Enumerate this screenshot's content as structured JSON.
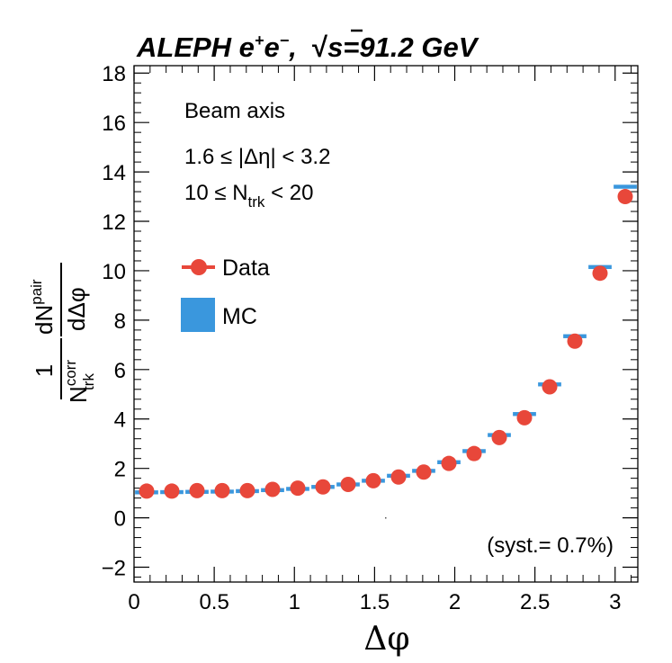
{
  "chart_data": {
    "type": "scatter",
    "title": {
      "prefix": "ALEPH e",
      "sup_plus": "+",
      "e2": "e",
      "sup_minus": "−",
      "sep": ",  ",
      "sqrt": "√",
      "energy": "s=91.2 GeV"
    },
    "xlabel": "Δφ",
    "ylabel": {
      "one": "1",
      "N": "N",
      "corr": "corr",
      "trk": "trk",
      "dN": "dN",
      "pair": "pair",
      "dphi": "dΔφ"
    },
    "xlim": [
      0,
      3.1416
    ],
    "ylim": [
      -2.6,
      18.3
    ],
    "xticks": [
      0,
      0.5,
      1,
      1.5,
      2,
      2.5,
      3
    ],
    "xtick_labels": [
      "0",
      "0.5",
      "1",
      "1.5",
      "2",
      "2.5",
      "3"
    ],
    "yticks": [
      -2,
      0,
      2,
      4,
      6,
      8,
      10,
      12,
      14,
      16,
      18
    ],
    "ytick_labels": [
      "−2",
      "0",
      "2",
      "4",
      "6",
      "8",
      "10",
      "12",
      "14",
      "16",
      "18"
    ],
    "annotations": {
      "line1": "Beam axis",
      "line2": "1.6 ≤ |Δη| < 3.2",
      "line3_prefix": "10 ≤ N",
      "line3_sub": "trk",
      "line3_suffix": " < 20",
      "syst": "(syst.= 0.7%)"
    },
    "legend": [
      {
        "name": "Data",
        "color": "#e8473a"
      },
      {
        "name": "MC",
        "color": "#3a97dd"
      }
    ],
    "series": [
      {
        "name": "Data",
        "color": "#e8473a",
        "x": [
          0.0785,
          0.2356,
          0.3927,
          0.5498,
          0.7069,
          0.8639,
          1.021,
          1.1781,
          1.3352,
          1.4923,
          1.6493,
          1.8064,
          1.9635,
          2.1206,
          2.2777,
          2.4347,
          2.5918,
          2.7489,
          2.906,
          3.0631
        ],
        "y": [
          1.08,
          1.08,
          1.1,
          1.1,
          1.1,
          1.15,
          1.2,
          1.25,
          1.35,
          1.5,
          1.65,
          1.85,
          2.2,
          2.6,
          3.25,
          4.05,
          5.3,
          7.15,
          9.9,
          13.0
        ]
      },
      {
        "name": "MC",
        "color": "#3a97dd",
        "x": [
          0.0785,
          0.2356,
          0.3927,
          0.5498,
          0.7069,
          0.8639,
          1.021,
          1.1781,
          1.3352,
          1.4923,
          1.6493,
          1.8064,
          1.9635,
          2.1206,
          2.2777,
          2.4347,
          2.5918,
          2.7489,
          2.906,
          3.0631
        ],
        "y": [
          1.03,
          1.04,
          1.05,
          1.06,
          1.08,
          1.12,
          1.17,
          1.25,
          1.35,
          1.5,
          1.7,
          1.9,
          2.25,
          2.7,
          3.35,
          4.2,
          5.4,
          7.35,
          10.15,
          13.4
        ]
      }
    ]
  }
}
